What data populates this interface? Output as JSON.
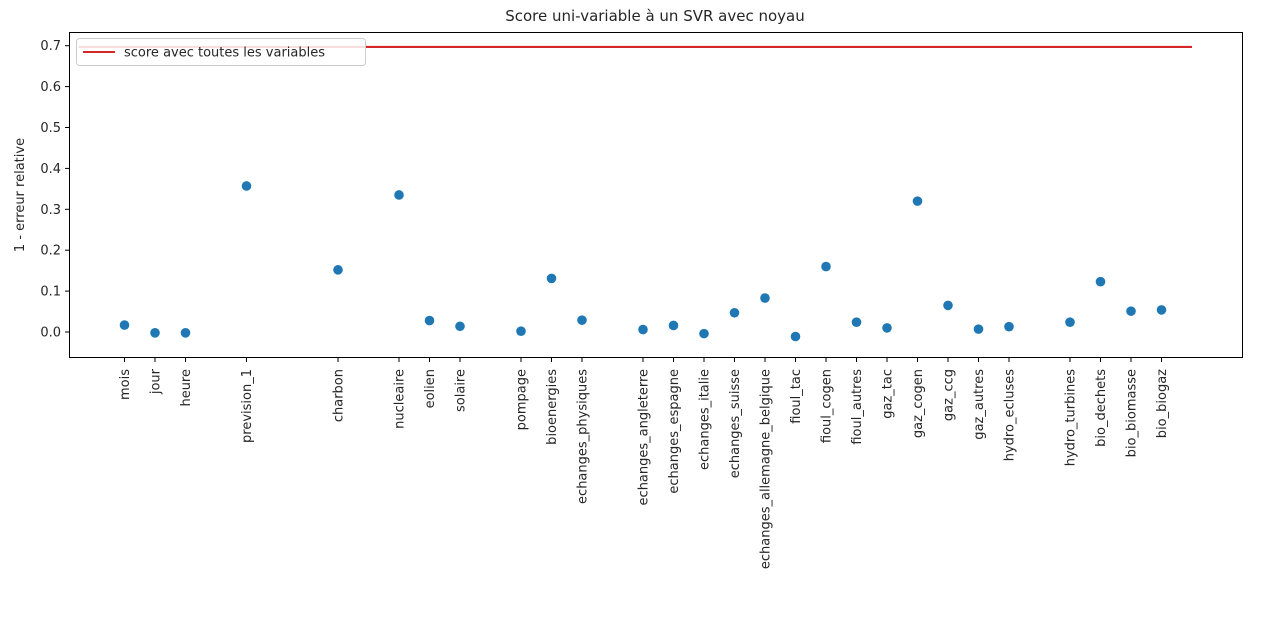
{
  "chart_data": {
    "type": "scatter",
    "title": "Score uni-variable à un SVR avec noyau",
    "xlabel": "",
    "ylabel": "1 - erreur relative",
    "ylim": [
      -0.065,
      0.72
    ],
    "yticks": [
      0.0,
      0.1,
      0.2,
      0.3,
      0.4,
      0.5,
      0.6,
      0.7
    ],
    "ytick_labels": [
      "0.0",
      "0.1",
      "0.2",
      "0.3",
      "0.4",
      "0.5",
      "0.6",
      "0.7"
    ],
    "grid": false,
    "legend_position": "top-left",
    "points": [
      {
        "x": 0,
        "label": "mois",
        "y": 0.017
      },
      {
        "x": 1,
        "label": "jour",
        "y": -0.002
      },
      {
        "x": 2,
        "label": "heure",
        "y": -0.002
      },
      {
        "x": 4,
        "label": "prevision_1",
        "y": 0.357
      },
      {
        "x": 7,
        "label": "charbon",
        "y": 0.152
      },
      {
        "x": 9,
        "label": "nucleaire",
        "y": 0.335
      },
      {
        "x": 10,
        "label": "eolien",
        "y": 0.028
      },
      {
        "x": 11,
        "label": "solaire",
        "y": 0.014
      },
      {
        "x": 13,
        "label": "pompage",
        "y": 0.002
      },
      {
        "x": 14,
        "label": "bioenergies",
        "y": 0.131
      },
      {
        "x": 15,
        "label": "echanges_physiques",
        "y": 0.029
      },
      {
        "x": 17,
        "label": "echanges_angleterre",
        "y": 0.006
      },
      {
        "x": 18,
        "label": "echanges_espagne",
        "y": 0.016
      },
      {
        "x": 19,
        "label": "echanges_italie",
        "y": -0.004
      },
      {
        "x": 20,
        "label": "echanges_suisse",
        "y": 0.047
      },
      {
        "x": 21,
        "label": "echanges_allemagne_belgique",
        "y": 0.083
      },
      {
        "x": 22,
        "label": "fioul_tac",
        "y": -0.011
      },
      {
        "x": 23,
        "label": "fioul_cogen",
        "y": 0.16
      },
      {
        "x": 24,
        "label": "fioul_autres",
        "y": 0.024
      },
      {
        "x": 25,
        "label": "gaz_tac",
        "y": 0.01
      },
      {
        "x": 26,
        "label": "gaz_cogen",
        "y": 0.32
      },
      {
        "x": 27,
        "label": "gaz_ccg",
        "y": 0.065
      },
      {
        "x": 28,
        "label": "gaz_autres",
        "y": 0.007
      },
      {
        "x": 29,
        "label": "hydro_ecluses",
        "y": 0.013
      },
      {
        "x": 31,
        "label": "hydro_turbines",
        "y": 0.024
      },
      {
        "x": 32,
        "label": "bio_dechets",
        "y": 0.123
      },
      {
        "x": 33,
        "label": "bio_biomasse",
        "y": 0.051
      },
      {
        "x": 34,
        "label": "bio_biogaz",
        "y": 0.054
      }
    ],
    "reference_line": {
      "name": "score avec toutes les variables",
      "y": 0.697,
      "x_range": [
        -1.5,
        35
      ]
    },
    "colors": {
      "points": "#1f77b4",
      "reference_line": "#d62728"
    }
  }
}
